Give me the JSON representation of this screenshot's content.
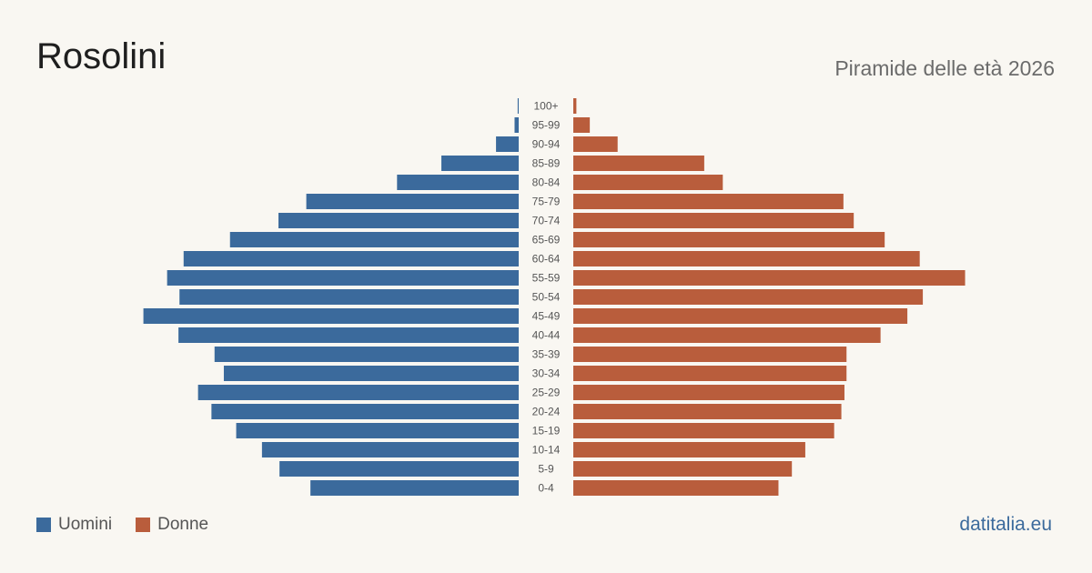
{
  "header": {
    "title": "Rosolini",
    "subtitle": "Piramide delle età 2026"
  },
  "legend": {
    "men_label": "Uomini",
    "women_label": "Donne"
  },
  "footer": {
    "brand": "datitalia.eu"
  },
  "colors": {
    "men": "#3b6a9c",
    "women": "#b95d3c",
    "background": "#f9f7f2"
  },
  "chart_data": {
    "type": "bar",
    "orientation": "horizontal-pyramid",
    "categories": [
      "100+",
      "95-99",
      "90-94",
      "85-89",
      "80-84",
      "75-79",
      "70-74",
      "65-69",
      "60-64",
      "55-59",
      "50-54",
      "45-49",
      "40-44",
      "35-39",
      "30-34",
      "25-29",
      "20-24",
      "15-19",
      "10-14",
      "5-9",
      "0-4"
    ],
    "series": [
      {
        "name": "Uomini",
        "values": [
          1,
          4,
          22,
          75,
          118,
          206,
          233,
          280,
          325,
          341,
          329,
          364,
          330,
          295,
          286,
          311,
          298,
          274,
          249,
          232,
          202
        ]
      },
      {
        "name": "Donne",
        "values": [
          3,
          16,
          43,
          127,
          145,
          262,
          272,
          302,
          336,
          380,
          339,
          324,
          298,
          265,
          265,
          263,
          260,
          253,
          225,
          212,
          199
        ]
      }
    ],
    "title": "Piramide delle età 2026",
    "xlabel": "",
    "ylabel": "",
    "grid": false,
    "legend_position": "bottom-left"
  }
}
